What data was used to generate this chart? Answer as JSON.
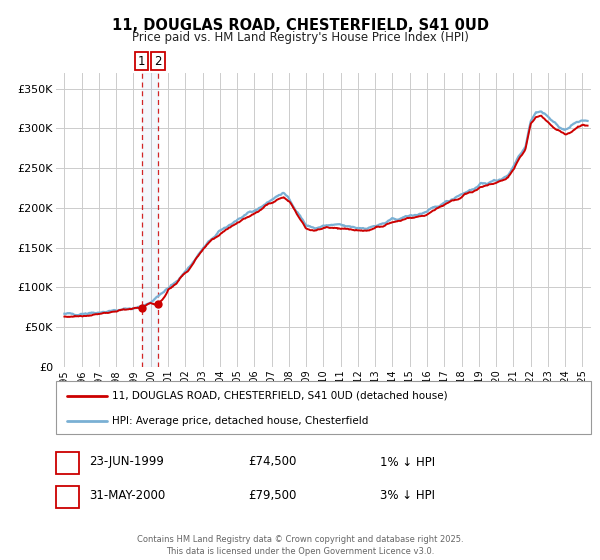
{
  "title": "11, DOUGLAS ROAD, CHESTERFIELD, S41 0UD",
  "subtitle": "Price paid vs. HM Land Registry's House Price Index (HPI)",
  "legend_label_red": "11, DOUGLAS ROAD, CHESTERFIELD, S41 0UD (detached house)",
  "legend_label_blue": "HPI: Average price, detached house, Chesterfield",
  "sale1_date": "23-JUN-1999",
  "sale1_price": 74500,
  "sale1_hpi_diff": "1% ↓ HPI",
  "sale2_date": "31-MAY-2000",
  "sale2_price": 79500,
  "sale2_hpi_diff": "3% ↓ HPI",
  "sale1_year": 1999.47,
  "sale2_year": 2000.41,
  "ylim_min": 0,
  "ylim_max": 370000,
  "xlim_min": 1994.5,
  "xlim_max": 2025.5,
  "yticks": [
    0,
    50000,
    100000,
    150000,
    200000,
    250000,
    300000,
    350000
  ],
  "ytick_labels": [
    "£0",
    "£50K",
    "£100K",
    "£150K",
    "£200K",
    "£250K",
    "£300K",
    "£350K"
  ],
  "xticks": [
    1995,
    1996,
    1997,
    1998,
    1999,
    2000,
    2001,
    2002,
    2003,
    2004,
    2005,
    2006,
    2007,
    2008,
    2009,
    2010,
    2011,
    2012,
    2013,
    2014,
    2015,
    2016,
    2017,
    2018,
    2019,
    2020,
    2021,
    2022,
    2023,
    2024,
    2025
  ],
  "color_red": "#cc0000",
  "color_blue_line": "#7ab0d4",
  "background_color": "#ffffff",
  "grid_color": "#cccccc",
  "footnote": "Contains HM Land Registry data © Crown copyright and database right 2025.\nThis data is licensed under the Open Government Licence v3.0."
}
